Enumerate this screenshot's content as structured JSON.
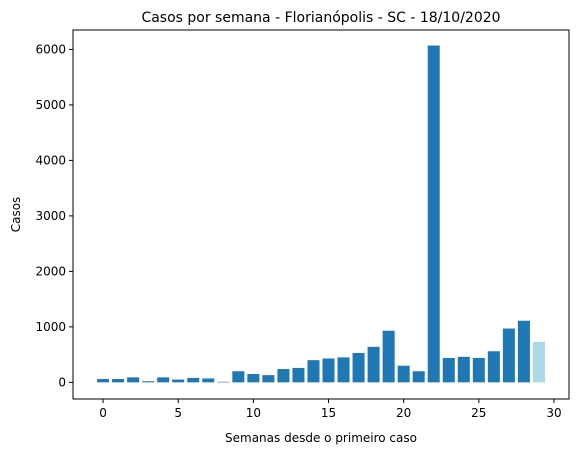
{
  "chart_data": {
    "type": "bar",
    "title": "Casos por semana - Florianópolis - SC - 18/10/2020",
    "xlabel": "Semanas desde o primeiro caso",
    "ylabel": "Casos",
    "xlim": [
      -2,
      31
    ],
    "ylim": [
      -300,
      6350
    ],
    "xticks": [
      0,
      5,
      10,
      15,
      20,
      25,
      30
    ],
    "yticks": [
      0,
      1000,
      2000,
      3000,
      4000,
      5000,
      6000
    ],
    "grid": false,
    "colors": {
      "bar": "#1f77b4",
      "last_bar": "#add8e6"
    },
    "x": [
      0,
      1,
      2,
      3,
      4,
      5,
      6,
      7,
      8,
      9,
      10,
      11,
      12,
      13,
      14,
      15,
      16,
      17,
      18,
      19,
      20,
      21,
      22,
      23,
      24,
      25,
      26,
      27,
      28,
      29
    ],
    "values": [
      60,
      60,
      90,
      20,
      90,
      50,
      80,
      70,
      10,
      200,
      150,
      130,
      240,
      260,
      400,
      430,
      450,
      530,
      640,
      930,
      300,
      200,
      6070,
      440,
      460,
      440,
      560,
      970,
      1110,
      730
    ]
  }
}
